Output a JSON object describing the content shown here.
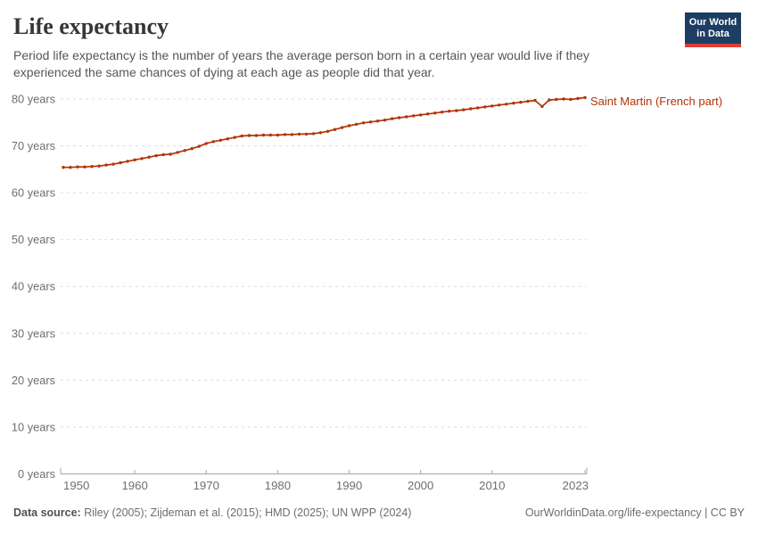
{
  "header": {
    "title": "Life expectancy",
    "subtitle_lines": [
      "Period life expectancy is the number of years the average person born in a certain year would live if they",
      "experienced the same chances of dying at each age as people did that year."
    ],
    "logo": {
      "line1": "Our World",
      "line2": "in Data",
      "bg_color": "#1d3d63",
      "accent_color": "#dc3d33"
    }
  },
  "chart_data": {
    "type": "line",
    "title": "Life expectancy",
    "xlabel": "",
    "ylabel": "",
    "grid": "horizontal-dashed",
    "legend_position": "end-of-line-label",
    "xlim": [
      1950,
      2023
    ],
    "ylim": [
      0,
      80
    ],
    "x_ticks": [
      1950,
      1960,
      1970,
      1980,
      1990,
      2000,
      2010,
      2023
    ],
    "y_ticks": [
      {
        "value": 0,
        "label": "0 years"
      },
      {
        "value": 10,
        "label": "10 years"
      },
      {
        "value": 20,
        "label": "20 years"
      },
      {
        "value": 30,
        "label": "30 years"
      },
      {
        "value": 40,
        "label": "40 years"
      },
      {
        "value": 50,
        "label": "50 years"
      },
      {
        "value": 60,
        "label": "60 years"
      },
      {
        "value": 70,
        "label": "70 years"
      },
      {
        "value": 80,
        "label": "80 years"
      }
    ],
    "x": [
      1950,
      1951,
      1952,
      1953,
      1954,
      1955,
      1956,
      1957,
      1958,
      1959,
      1960,
      1961,
      1962,
      1963,
      1964,
      1965,
      1966,
      1967,
      1968,
      1969,
      1970,
      1971,
      1972,
      1973,
      1974,
      1975,
      1976,
      1977,
      1978,
      1979,
      1980,
      1981,
      1982,
      1983,
      1984,
      1985,
      1986,
      1987,
      1988,
      1989,
      1990,
      1991,
      1992,
      1993,
      1994,
      1995,
      1996,
      1997,
      1998,
      1999,
      2000,
      2001,
      2002,
      2003,
      2004,
      2005,
      2006,
      2007,
      2008,
      2009,
      2010,
      2011,
      2012,
      2013,
      2014,
      2015,
      2016,
      2017,
      2018,
      2019,
      2020,
      2021,
      2022,
      2023
    ],
    "series": [
      {
        "name": "Saint Martin (French part)",
        "color": "#b13507",
        "values": [
          65.4,
          65.4,
          65.5,
          65.5,
          65.6,
          65.7,
          65.9,
          66.1,
          66.4,
          66.7,
          67.0,
          67.3,
          67.6,
          67.9,
          68.1,
          68.2,
          68.6,
          69.0,
          69.4,
          69.9,
          70.5,
          70.9,
          71.2,
          71.5,
          71.8,
          72.1,
          72.2,
          72.2,
          72.3,
          72.3,
          72.3,
          72.4,
          72.4,
          72.5,
          72.5,
          72.6,
          72.8,
          73.1,
          73.5,
          73.9,
          74.3,
          74.6,
          74.9,
          75.1,
          75.3,
          75.5,
          75.8,
          76.0,
          76.2,
          76.4,
          76.6,
          76.8,
          77.0,
          77.2,
          77.4,
          77.5,
          77.7,
          77.9,
          78.1,
          78.3,
          78.5,
          78.7,
          78.9,
          79.1,
          79.3,
          79.5,
          79.7,
          78.4,
          79.8,
          79.9,
          80.0,
          79.9,
          80.1,
          80.3
        ]
      }
    ],
    "series_label": "Saint Martin (French part)"
  },
  "footer": {
    "data_source_label": "Data source:",
    "data_source_text": " Riley (2005); Zijdeman et al. (2015); HMD (2025); UN WPP (2024)",
    "attribution": "OurWorldinData.org/life-expectancy | CC BY"
  },
  "colors": {
    "line": "#b13507",
    "gridline": "#dcdcdc",
    "axis": "#a8a8a8",
    "tick_text": "#6e6e6e"
  }
}
